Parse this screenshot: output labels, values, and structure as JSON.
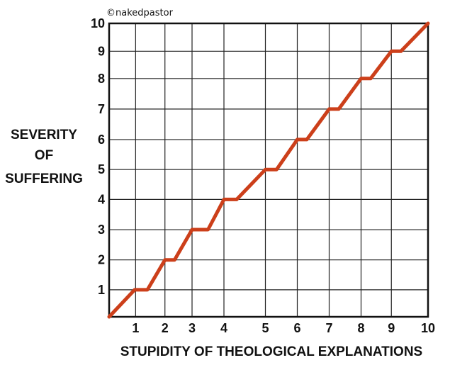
{
  "watermark": "©nakedpastor",
  "chart_data": {
    "type": "line",
    "title": "",
    "xlabel": "STUPIDITY OF THEOLOGICAL EXPLANATIONS",
    "ylabel_lines": [
      "SEVERITY",
      "OF",
      "SUFFERING"
    ],
    "xlim": [
      0,
      10
    ],
    "ylim": [
      0,
      10
    ],
    "x_ticks": [
      "1",
      "2",
      "3",
      "4",
      "5",
      "6",
      "7",
      "8",
      "9",
      "10"
    ],
    "x_tick_values": [
      0.83,
      1.75,
      2.6,
      3.6,
      4.9,
      5.9,
      6.9,
      7.9,
      8.85,
      10
    ],
    "y_ticks": [
      "1",
      "2",
      "3",
      "4",
      "5",
      "6",
      "7",
      "8",
      "9",
      "10"
    ],
    "y_tick_values": [
      0.92,
      1.94,
      2.97,
      4.0,
      5.02,
      6.04,
      7.08,
      8.12,
      9.05,
      10
    ],
    "grid": true,
    "series": [
      {
        "color": "#cc3f1a",
        "x": [
          0,
          0.8,
          1.2,
          1.75,
          2.05,
          2.6,
          3.1,
          3.6,
          4.0,
          4.9,
          5.25,
          5.9,
          6.2,
          6.9,
          7.2,
          7.9,
          8.2,
          8.85,
          9.15,
          10
        ],
        "y": [
          0,
          0.92,
          0.92,
          1.94,
          1.94,
          2.97,
          2.97,
          4.0,
          4.0,
          5.02,
          5.02,
          6.04,
          6.04,
          7.08,
          7.08,
          8.12,
          8.12,
          9.05,
          9.05,
          10
        ]
      }
    ]
  }
}
